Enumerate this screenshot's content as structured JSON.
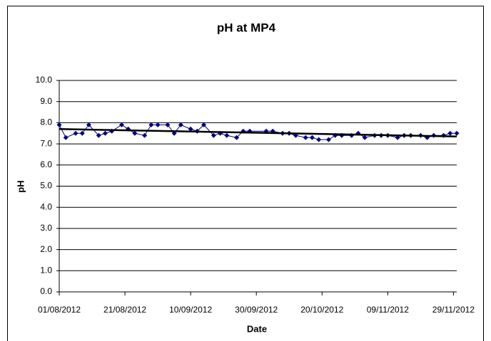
{
  "chart_data": {
    "type": "line",
    "title": "pH at MP4",
    "x_label": "Date",
    "y_label": "pH",
    "x": [
      "2012-08-01",
      "2012-08-03",
      "2012-08-06",
      "2012-08-08",
      "2012-08-10",
      "2012-08-13",
      "2012-08-15",
      "2012-08-17",
      "2012-08-20",
      "2012-08-22",
      "2012-08-24",
      "2012-08-27",
      "2012-08-29",
      "2012-08-31",
      "2012-09-03",
      "2012-09-05",
      "2012-09-07",
      "2012-09-10",
      "2012-09-12",
      "2012-09-14",
      "2012-09-17",
      "2012-09-19",
      "2012-09-21",
      "2012-09-24",
      "2012-09-26",
      "2012-09-28",
      "2012-10-03",
      "2012-10-05",
      "2012-10-08",
      "2012-10-10",
      "2012-10-12",
      "2012-10-15",
      "2012-10-17",
      "2012-10-19",
      "2012-10-22",
      "2012-10-24",
      "2012-10-26",
      "2012-10-29",
      "2012-10-31",
      "2012-11-02",
      "2012-11-05",
      "2012-11-07",
      "2012-11-09",
      "2012-11-12",
      "2012-11-14",
      "2012-11-16",
      "2012-11-19",
      "2012-11-21",
      "2012-11-23",
      "2012-11-26",
      "2012-11-28",
      "2012-11-30"
    ],
    "series": [
      {
        "name": "pH",
        "color": "#000080",
        "values": [
          7.9,
          7.3,
          7.5,
          7.5,
          7.9,
          7.4,
          7.5,
          7.6,
          7.9,
          7.7,
          7.5,
          7.4,
          7.9,
          7.9,
          7.9,
          7.5,
          7.9,
          7.7,
          7.6,
          7.9,
          7.4,
          7.5,
          7.4,
          7.3,
          7.6,
          7.6,
          7.6,
          7.6,
          7.5,
          7.5,
          7.4,
          7.3,
          7.3,
          7.2,
          7.2,
          7.4,
          7.4,
          7.4,
          7.5,
          7.3,
          7.4,
          7.4,
          7.4,
          7.3,
          7.4,
          7.4,
          7.4,
          7.3,
          7.4,
          7.4,
          7.5,
          7.5
        ]
      }
    ],
    "trendline": {
      "color": "#000000",
      "values": [
        7.7,
        7.35
      ]
    },
    "xlim": [
      "2012-08-01",
      "2012-11-30"
    ],
    "xticks": [
      {
        "value": "2012-08-01",
        "label": "01/08/2012"
      },
      {
        "value": "2012-08-21",
        "label": "21/08/2012"
      },
      {
        "value": "2012-09-10",
        "label": "10/09/2012"
      },
      {
        "value": "2012-09-30",
        "label": "30/09/2012"
      },
      {
        "value": "2012-10-20",
        "label": "20/10/2012"
      },
      {
        "value": "2012-11-09",
        "label": "09/11/2012"
      },
      {
        "value": "2012-11-29",
        "label": "29/11/2012"
      }
    ],
    "ylim": [
      0,
      10
    ],
    "yticks": [
      {
        "value": 0,
        "label": "0.0"
      },
      {
        "value": 1,
        "label": "1.0"
      },
      {
        "value": 2,
        "label": "2.0"
      },
      {
        "value": 3,
        "label": "3.0"
      },
      {
        "value": 4,
        "label": "4.0"
      },
      {
        "value": 5,
        "label": "5.0"
      },
      {
        "value": 6,
        "label": "6.0"
      },
      {
        "value": 7,
        "label": "7.0"
      },
      {
        "value": 8,
        "label": "8.0"
      },
      {
        "value": 9,
        "label": "9.0"
      },
      {
        "value": 10,
        "label": "10.0"
      }
    ],
    "grid": true
  }
}
